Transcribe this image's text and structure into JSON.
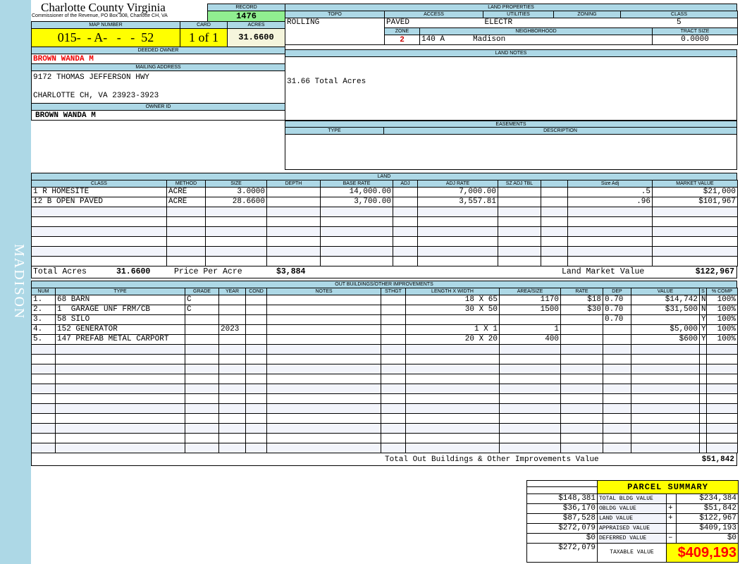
{
  "side_label": "MADISON",
  "header": {
    "title": "Charlotte County Virginia",
    "subtitle": "Commissioner of the Revenue, PO Box 308, Charlotte CH, VA",
    "record_label": "RECORD",
    "record": "1476",
    "map_number_label": "MAP NUMBER",
    "map_number": "015-  - A-   -   -  52",
    "card_label": "CARD",
    "card": "1 of 1",
    "acres_label": "ACRES",
    "acres": "31.6600"
  },
  "owner": {
    "deeded_label": "DEEDED OWNER",
    "deeded": "BROWN WANDA M",
    "mailing_label": "MAILING ADDRESS",
    "address_line1": "9172 THOMAS JEFFERSON HWY",
    "address_line2": "CHARLOTTE CH, VA 23923-3923",
    "owner_id_label": "OWNER ID",
    "owner_id": "BROWN WANDA M"
  },
  "land_properties": {
    "title": "LAND PROPERTIES",
    "topo_label": "TOPO",
    "access_label": "ACCESS",
    "utilities_label": "UTILITIES",
    "zoning_label": "ZONING",
    "class_label": "CLASS",
    "topo": "ROLLING",
    "access": "PAVED",
    "utilities": "ELECTR",
    "zoning": "",
    "class": "5",
    "zone_label": "ZONE",
    "neighborhood_label": "NEIGHBORHOOD",
    "tract_label": "TRACT SIZE",
    "zone": "2",
    "neighborhood_code": "140 A",
    "neighborhood": "Madison",
    "tract_size": "0.0000"
  },
  "land_notes": {
    "title": "LAND NOTES",
    "text": "31.66 Total Acres"
  },
  "easements": {
    "title": "EASEMENTS",
    "type_label": "TYPE",
    "description_label": "DESCRIPTION"
  },
  "land": {
    "title": "LAND",
    "columns": [
      "CLASS",
      "METHOD",
      "SIZE",
      "DEPTH",
      "BASE RATE",
      "ADJ",
      "ADJ RATE",
      "SZ ADJ TBL",
      "",
      "Size Adj",
      "MARKET VALUE"
    ],
    "rows": [
      [
        "1 R HOMESITE",
        "ACRE",
        "3.0000",
        "",
        "14,000.00",
        "",
        "7,000.00",
        "",
        "",
        ".5",
        "$21,000"
      ],
      [
        "12 B OPEN PAVED",
        "ACRE",
        "28.6600",
        "",
        "3,700.00",
        "",
        "3,557.81",
        "",
        "",
        ".96",
        "$101,967"
      ]
    ],
    "total_acres_label": "Total Acres",
    "total_acres": "31.6600",
    "price_per_acre_label": "Price Per Acre",
    "price_per_acre": "$3,884",
    "market_value_label": "Land Market Value",
    "market_value": "$122,967"
  },
  "outbuildings": {
    "title": "OUT BUILDINGS/OTHER IMPROVEMENTS",
    "columns": [
      "NUM",
      "TYPE",
      "GRADE",
      "YEAR",
      "COND",
      "NOTES",
      "STHGT",
      "LENGTH X WIDTH",
      "AREA/SIZE",
      "RATE",
      "DEP",
      "VALUE",
      "S",
      "% COMP"
    ],
    "rows": [
      [
        "1.",
        "68 BARN",
        "C",
        "",
        "",
        "",
        "",
        "18 X 65",
        "1170",
        "$18",
        "0.70",
        "$14,742",
        "N",
        "100%"
      ],
      [
        "2.",
        "1  GARAGE UNF FRM/CB",
        "C",
        "",
        "",
        "",
        "",
        "30 X 50",
        "1500",
        "$30",
        "0.70",
        "$31,500",
        "N",
        "100%"
      ],
      [
        "3.",
        "58 SILO",
        "",
        "",
        "",
        "",
        "",
        "",
        "",
        "",
        "0.70",
        "",
        "Y",
        "100%"
      ],
      [
        "4.",
        "152 GENERATOR",
        "",
        "2023",
        "",
        "",
        "",
        "1 X 1",
        "1",
        "",
        "",
        "$5,000",
        "Y",
        "100%"
      ],
      [
        "5.",
        "147 PREFAB METAL CARPORT",
        "",
        "",
        "",
        "",
        "",
        "20 X 20",
        "400",
        "",
        "",
        "$600",
        "Y",
        "100%"
      ]
    ],
    "total_label": "Total Out Buildings & Other Improvements Value",
    "total": "$51,842"
  },
  "summary": {
    "title": "PARCEL SUMMARY",
    "rows": [
      {
        "prev": "$148,381",
        "label": "TOTAL BLDG VALUE",
        "sign": "",
        "value": "$234,384"
      },
      {
        "prev": "$36,170",
        "label": "OBLDG VALUE",
        "sign": "+",
        "value": "$51,842"
      },
      {
        "prev": "$87,528",
        "label": "LAND VALUE",
        "sign": "+",
        "value": "$122,967"
      },
      {
        "prev": "$272,079",
        "label": "APPRAISED VALUE",
        "sign": "",
        "value": "$409,193"
      },
      {
        "prev": "$0",
        "label": "DEFERRED VALUE",
        "sign": "–",
        "value": "$0"
      }
    ],
    "taxable_prev": "$272,079",
    "taxable_label": "TAXABLE VALUE",
    "taxable": "$409,193",
    "taxable_color": "#ff0000"
  }
}
